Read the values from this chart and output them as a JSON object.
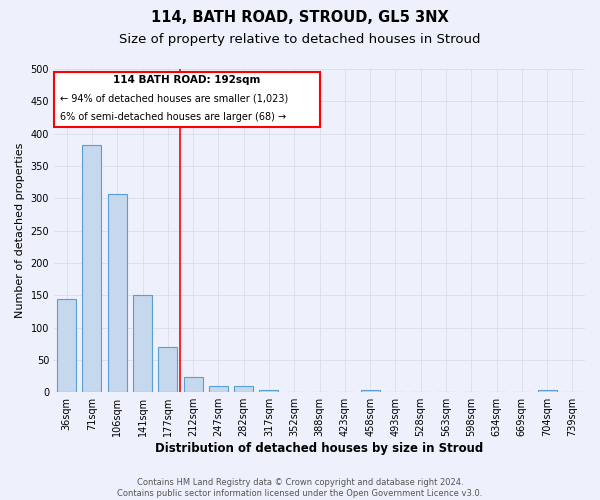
{
  "title": "114, BATH ROAD, STROUD, GL5 3NX",
  "subtitle": "Size of property relative to detached houses in Stroud",
  "xlabel": "Distribution of detached houses by size in Stroud",
  "ylabel": "Number of detached properties",
  "categories": [
    "36sqm",
    "71sqm",
    "106sqm",
    "141sqm",
    "177sqm",
    "212sqm",
    "247sqm",
    "282sqm",
    "317sqm",
    "352sqm",
    "388sqm",
    "423sqm",
    "458sqm",
    "493sqm",
    "528sqm",
    "563sqm",
    "598sqm",
    "634sqm",
    "669sqm",
    "704sqm",
    "739sqm"
  ],
  "values": [
    144,
    383,
    307,
    150,
    70,
    23,
    10,
    10,
    4,
    0,
    0,
    0,
    4,
    0,
    0,
    0,
    0,
    0,
    0,
    4,
    0
  ],
  "bar_color": "#c5d8ee",
  "bar_edge_color": "#5a9fd4",
  "red_line_index": 4.5,
  "ylim": [
    0,
    500
  ],
  "yticks": [
    0,
    50,
    100,
    150,
    200,
    250,
    300,
    350,
    400,
    450,
    500
  ],
  "annotation_text_line1": "114 BATH ROAD: 192sqm",
  "annotation_text_line2": "← 94% of detached houses are smaller (1,023)",
  "annotation_text_line3": "6% of semi-detached houses are larger (68) →",
  "footer_line1": "Contains HM Land Registry data © Crown copyright and database right 2024.",
  "footer_line2": "Contains public sector information licensed under the Open Government Licence v3.0.",
  "background_color": "#eef1fb",
  "grid_color": "#d8dde8",
  "title_fontsize": 10.5,
  "subtitle_fontsize": 9.5,
  "xlabel_fontsize": 8.5,
  "ylabel_fontsize": 8.0,
  "tick_fontsize": 7.0,
  "footer_fontsize": 6.0,
  "ann_fontsize": 7.5
}
